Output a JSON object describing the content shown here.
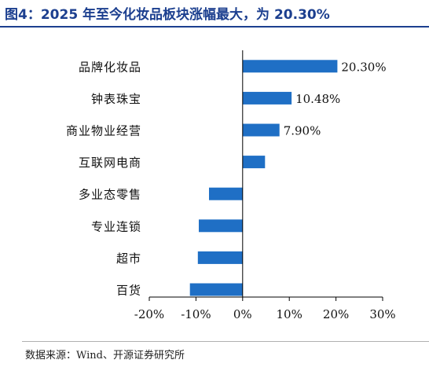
{
  "header": {
    "title": "图4：2025 年至今化妆品板块涨幅最大，为 20.30%"
  },
  "footer": {
    "source": "数据来源：Wind、开源证券研究所"
  },
  "chart_data": {
    "type": "bar",
    "orientation": "horizontal",
    "categories": [
      "品牌化妆品",
      "钟表珠宝",
      "商业物业经营",
      "互联网电商",
      "多业态零售",
      "专业连锁",
      "超市",
      "百货"
    ],
    "values": [
      20.3,
      10.48,
      7.9,
      4.8,
      -7.2,
      -9.4,
      -9.6,
      -11.3
    ],
    "data_labels": [
      "20.30%",
      "10.48%",
      "7.90%",
      "",
      "",
      "",
      "",
      ""
    ],
    "xlim": [
      -20,
      30
    ],
    "x_ticks": [
      -20,
      -10,
      0,
      10,
      20,
      30
    ],
    "x_tick_labels": [
      "-20%",
      "-10%",
      "0%",
      "10%",
      "20%",
      "30%"
    ],
    "bar_color": "#1f6fc5",
    "grid": false,
    "legend": "none"
  }
}
